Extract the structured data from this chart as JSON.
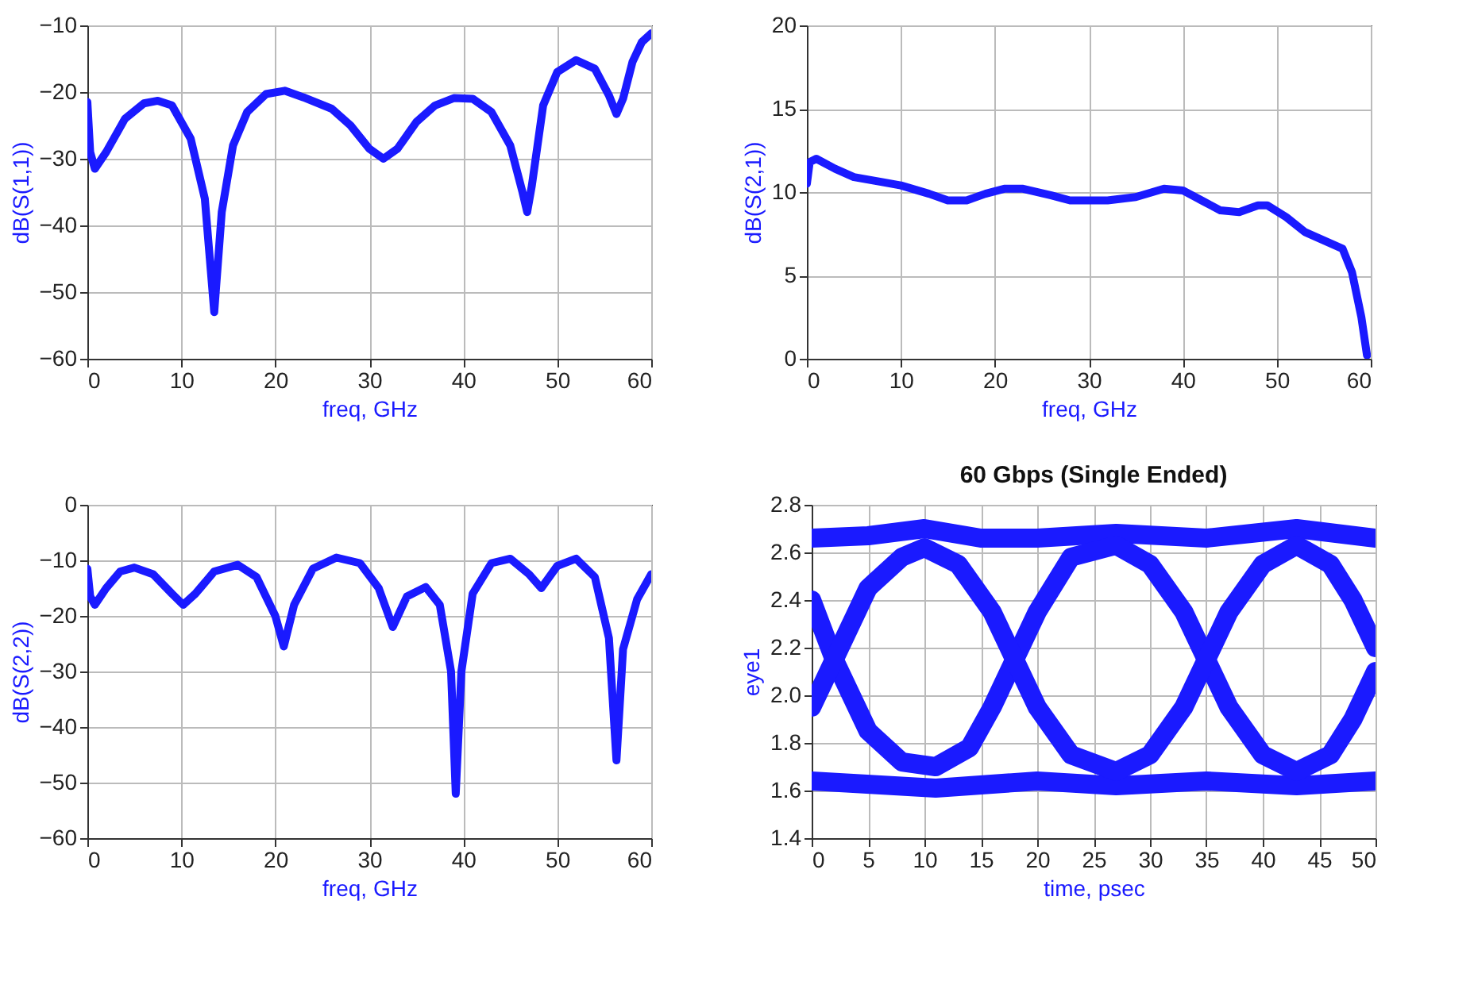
{
  "chart_data": [
    {
      "type": "line",
      "xlabel": "freq, GHz",
      "ylabel": "dB(S(1,1))",
      "xlim": [
        0,
        60
      ],
      "ylim": [
        -60,
        -10
      ],
      "xticks": [
        0,
        10,
        20,
        30,
        40,
        50,
        60
      ],
      "yticks": [
        -60,
        -50,
        -40,
        -30,
        -20,
        -10
      ],
      "grid": true,
      "legend": false,
      "series": [
        {
          "color": "#1a1aff",
          "x": [
            0,
            0.3,
            0.8,
            2,
            4,
            6,
            7.5,
            9,
            11,
            12.5,
            13.5,
            14.3,
            15.5,
            17,
            19,
            21,
            23,
            26,
            28,
            30,
            31.5,
            33,
            35,
            37,
            39,
            41,
            43,
            45,
            46.3,
            46.8,
            47.3,
            48.5,
            50,
            52,
            54,
            55.5,
            56.3,
            57,
            58,
            59,
            60
          ],
          "values": [
            -21.5,
            -29,
            -31.5,
            -29,
            -24,
            -21.7,
            -21.3,
            -22,
            -27,
            -36,
            -53,
            -38,
            -28,
            -23,
            -20.3,
            -19.8,
            -20.8,
            -22.5,
            -25,
            -28.5,
            -30,
            -28.5,
            -24.5,
            -22,
            -20.9,
            -21,
            -23,
            -28,
            -35,
            -38,
            -34,
            -22,
            -17,
            -15.2,
            -16.5,
            -20.5,
            -23.3,
            -21,
            -15.5,
            -12.5,
            -11.2
          ]
        }
      ]
    },
    {
      "type": "line",
      "xlabel": "freq, GHz",
      "ylabel": "dB(S(2,1))",
      "xlim": [
        0,
        60
      ],
      "ylim": [
        0,
        20
      ],
      "xticks": [
        0,
        10,
        20,
        30,
        40,
        50,
        60
      ],
      "yticks": [
        0,
        5,
        10,
        15,
        20
      ],
      "grid": true,
      "legend": false,
      "series": [
        {
          "color": "#1a1aff",
          "x": [
            0,
            0.3,
            1,
            3,
            5,
            8,
            10,
            13,
            15,
            17,
            19,
            21,
            23,
            26,
            28,
            32,
            35,
            38,
            40,
            42,
            44,
            46,
            48,
            49,
            51,
            53,
            55,
            57,
            58,
            59,
            59.6
          ],
          "values": [
            10.5,
            11.8,
            12,
            11.4,
            10.9,
            10.6,
            10.4,
            9.9,
            9.5,
            9.5,
            9.9,
            10.2,
            10.2,
            9.8,
            9.5,
            9.5,
            9.7,
            10.2,
            10.1,
            9.5,
            8.9,
            8.8,
            9.2,
            9.2,
            8.5,
            7.6,
            7.1,
            6.6,
            5.2,
            2.5,
            0.2
          ]
        }
      ]
    },
    {
      "type": "line",
      "xlabel": "freq, GHz",
      "ylabel": "dB(S(2,2))",
      "xlim": [
        0,
        60
      ],
      "ylim": [
        -60,
        0
      ],
      "xticks": [
        0,
        10,
        20,
        30,
        40,
        50,
        60
      ],
      "yticks": [
        -60,
        -50,
        -40,
        -30,
        -20,
        -10,
        0
      ],
      "grid": true,
      "legend": false,
      "series": [
        {
          "color": "#1a1aff",
          "x": [
            0,
            0.3,
            0.8,
            2,
            3.5,
            5,
            7,
            9,
            10.2,
            11.5,
            13.5,
            16,
            18,
            20,
            20.9,
            22,
            24,
            26.5,
            29,
            31,
            32.5,
            34,
            36,
            37.5,
            38.7,
            39.2,
            39.8,
            41,
            43,
            45,
            47,
            48.3,
            50,
            52,
            54,
            55.5,
            56.3,
            57,
            58.5,
            60
          ],
          "values": [
            -11.5,
            -16.5,
            -18,
            -15,
            -12,
            -11.3,
            -12.5,
            -16,
            -18,
            -16,
            -12,
            -10.8,
            -13,
            -20,
            -25.5,
            -18,
            -11.5,
            -9.5,
            -10.5,
            -15,
            -22,
            -16.5,
            -14.8,
            -18,
            -30,
            -52,
            -30,
            -16,
            -10.5,
            -9.7,
            -12.5,
            -15,
            -11,
            -9.7,
            -13,
            -24,
            -46,
            -26,
            -17,
            -12.5
          ]
        }
      ]
    },
    {
      "type": "line",
      "title": "60 Gbps (Single Ended)",
      "xlabel": "time, psec",
      "ylabel": "eye1",
      "xlim": [
        0,
        50
      ],
      "ylim": [
        1.4,
        2.8
      ],
      "xticks": [
        0,
        5,
        10,
        15,
        20,
        25,
        30,
        35,
        40,
        45,
        50
      ],
      "yticks": [
        {
          "value": 1.4,
          "label": "1.4"
        },
        {
          "value": 1.6,
          "label": "1.6"
        },
        {
          "value": 1.8,
          "label": "1.8"
        },
        {
          "value": 2.0,
          "label": "2.0"
        },
        {
          "value": 2.2,
          "label": "2.2"
        },
        {
          "value": 2.4,
          "label": "2.4"
        },
        {
          "value": 2.6,
          "label": "2.6"
        },
        {
          "value": 2.8,
          "label": "2.8"
        }
      ],
      "grid": true,
      "legend": false,
      "series": [
        {
          "color": "#1a1aff",
          "x": [
            0,
            5,
            10,
            15,
            20,
            27,
            35,
            43,
            50
          ],
          "values": [
            2.66,
            2.67,
            2.7,
            2.66,
            2.66,
            2.68,
            2.66,
            2.7,
            2.66
          ]
        },
        {
          "color": "#1a1aff",
          "x": [
            0,
            11,
            20,
            27,
            35,
            43,
            50
          ],
          "values": [
            1.64,
            1.61,
            1.64,
            1.62,
            1.64,
            1.62,
            1.64
          ]
        },
        {
          "color": "#1a1aff",
          "x": [
            0,
            2,
            5,
            8,
            11,
            14,
            16,
            18,
            20,
            23,
            27,
            30,
            33,
            35,
            37,
            40,
            43,
            46,
            48,
            50
          ],
          "values": [
            2.4,
            2.15,
            1.85,
            1.72,
            1.7,
            1.78,
            1.95,
            2.15,
            2.35,
            2.58,
            2.63,
            2.55,
            2.35,
            2.15,
            1.95,
            1.75,
            1.68,
            1.75,
            1.9,
            2.1
          ]
        },
        {
          "color": "#1a1aff",
          "x": [
            0,
            2,
            5,
            8,
            10,
            13,
            16,
            18,
            20,
            23,
            27,
            30,
            33,
            35,
            37,
            40,
            43,
            46,
            48,
            50
          ],
          "values": [
            1.95,
            2.15,
            2.45,
            2.58,
            2.62,
            2.55,
            2.35,
            2.15,
            1.95,
            1.75,
            1.68,
            1.75,
            1.95,
            2.15,
            2.35,
            2.55,
            2.63,
            2.55,
            2.4,
            2.2
          ]
        }
      ]
    }
  ]
}
